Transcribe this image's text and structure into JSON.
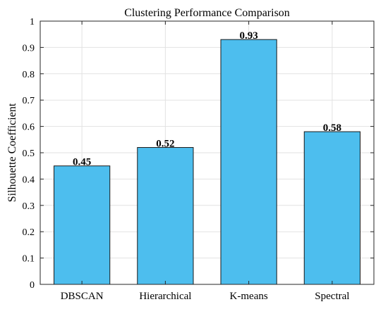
{
  "chart_data": {
    "type": "bar",
    "title": "Clustering Performance Comparison",
    "xlabel": "",
    "ylabel": "Silhouette Coefficient",
    "categories": [
      "DBSCAN",
      "Hierarchical",
      "K-means",
      "Spectral"
    ],
    "values": [
      0.45,
      0.52,
      0.93,
      0.58
    ],
    "data_labels": [
      "0.45",
      "0.52",
      "0.93",
      "0.58"
    ],
    "ylim": [
      0,
      1
    ],
    "yticks": [
      0,
      0.1,
      0.2,
      0.3,
      0.4,
      0.5,
      0.6,
      0.7,
      0.8,
      0.9,
      1
    ],
    "ytick_labels": [
      "0",
      "0.1",
      "0.2",
      "0.3",
      "0.4",
      "0.5",
      "0.6",
      "0.7",
      "0.8",
      "0.9",
      "1"
    ],
    "grid": true,
    "bar_color": "#4DBEEE",
    "edge_color": "#1a1a1a"
  }
}
